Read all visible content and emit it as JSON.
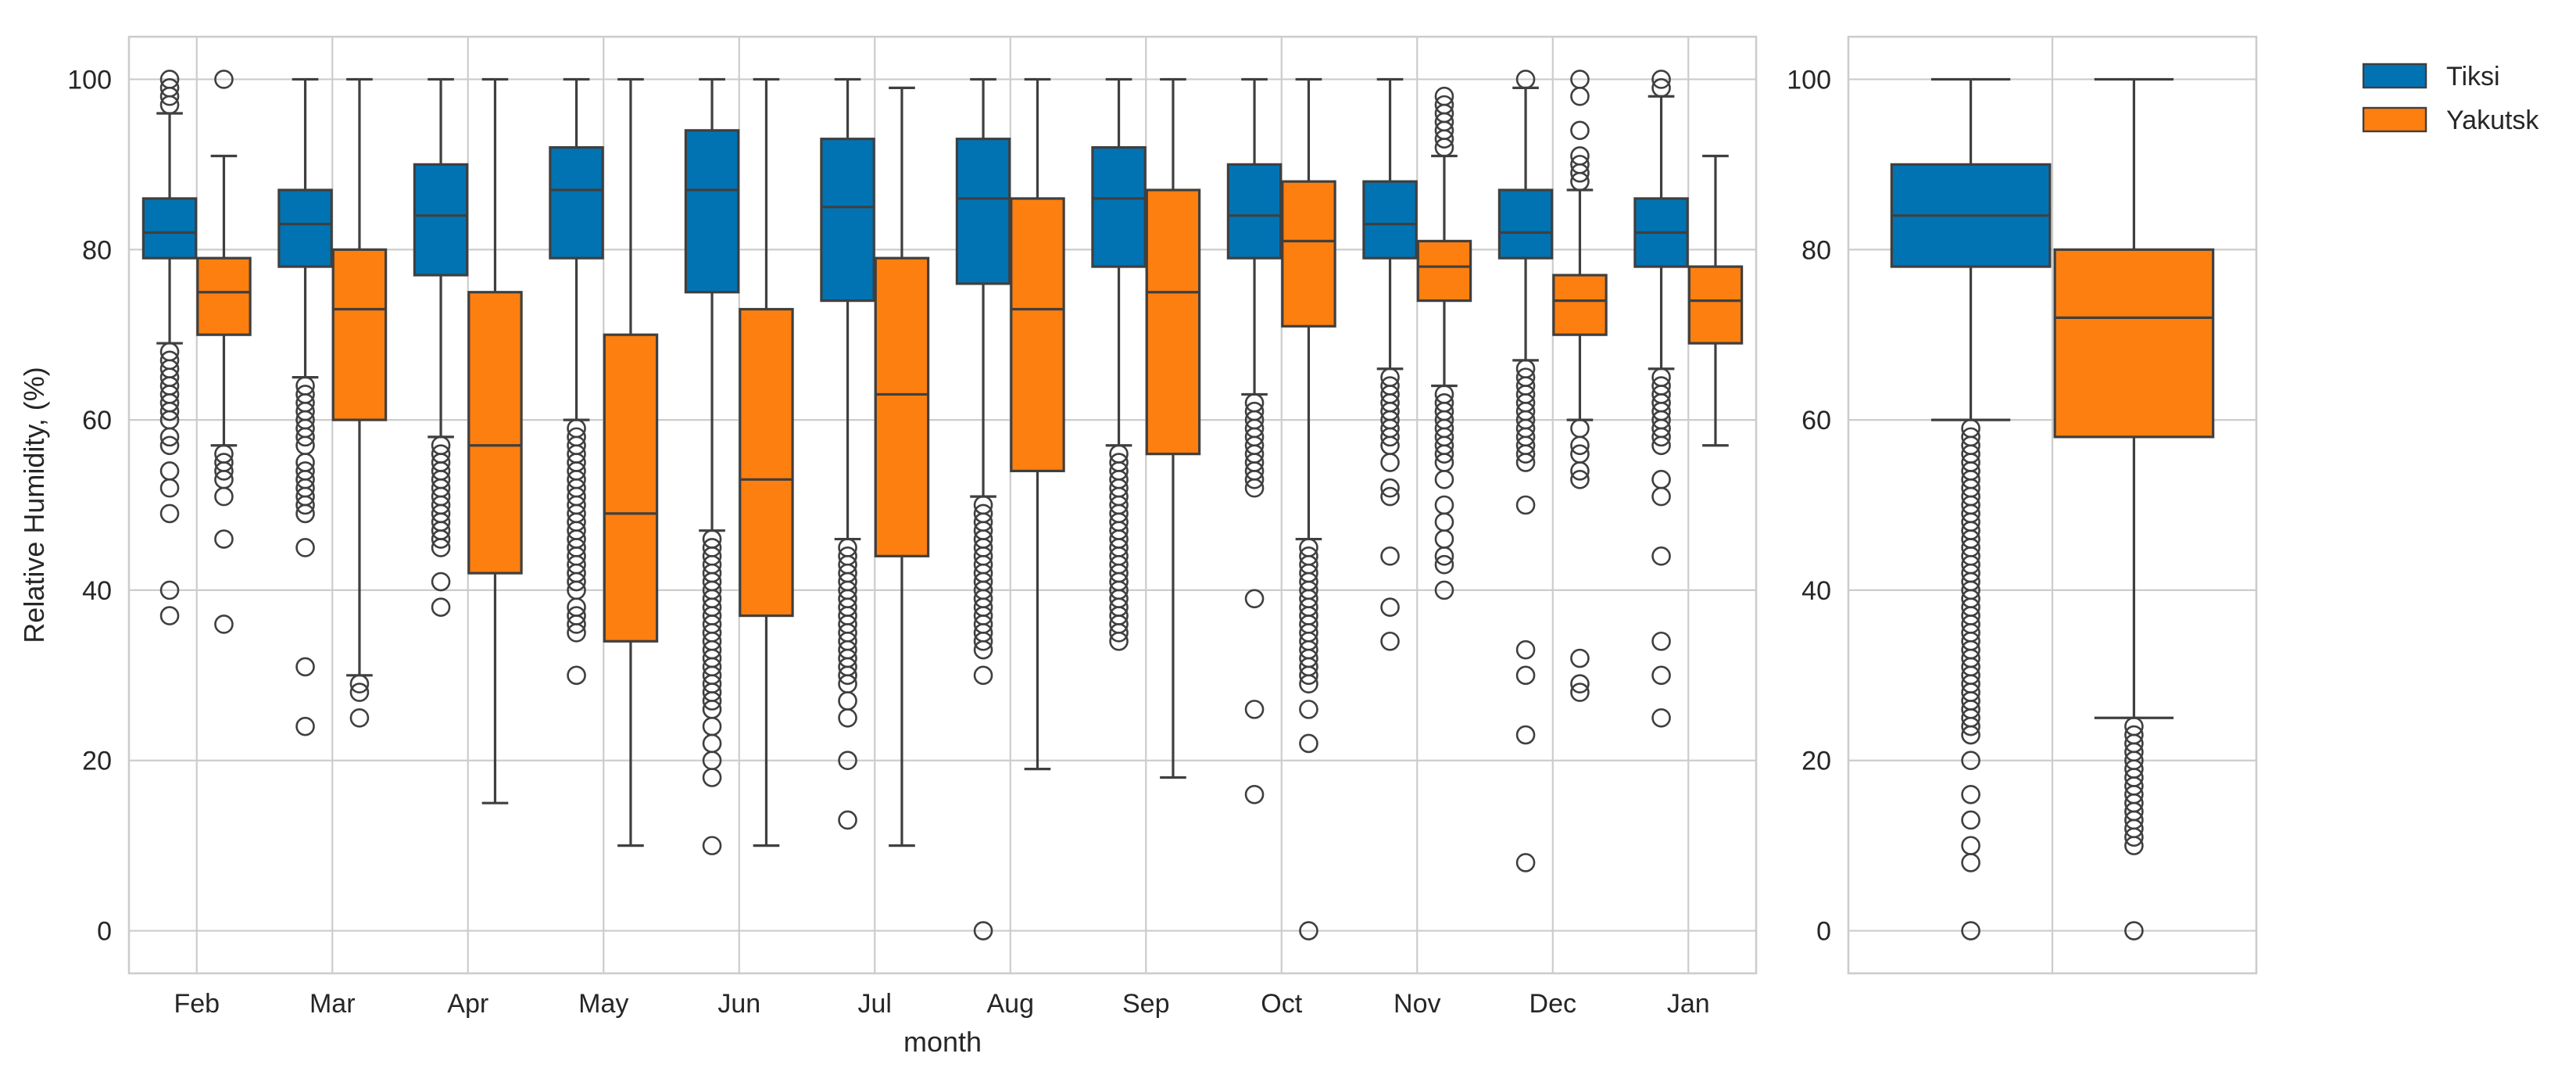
{
  "chart_data": {
    "type": "boxplot",
    "colors": {
      "Tiksi": "#0173b2",
      "Yakutsk": "#fd7f0f"
    },
    "legend": {
      "placement": "top-right",
      "entries": [
        "Tiksi",
        "Yakutsk"
      ]
    },
    "ylim": [
      -5,
      105
    ],
    "yticks": [
      0,
      20,
      40,
      60,
      80,
      100
    ],
    "ytick_labels": [
      "0",
      "20",
      "40",
      "60",
      "80",
      "100"
    ],
    "grid": true,
    "panels": [
      {
        "id": "monthly",
        "xlabel": "month",
        "ylabel": "Relative Humidity, (%)",
        "categories": [
          "Feb",
          "Mar",
          "Apr",
          "May",
          "Jun",
          "Jul",
          "Aug",
          "Sep",
          "Oct",
          "Nov",
          "Dec",
          "Jan"
        ],
        "series": [
          {
            "name": "Tiksi",
            "boxes": [
              {
                "whislo": 69,
                "q1": 79,
                "med": 82,
                "q3": 86,
                "whishi": 96,
                "fliers": [
                  37,
                  40,
                  49,
                  52,
                  54,
                  57,
                  58,
                  60,
                  61,
                  62,
                  63,
                  64,
                  65,
                  66,
                  67,
                  68,
                  97,
                  98,
                  99,
                  100
                ]
              },
              {
                "whislo": 65,
                "q1": 78,
                "med": 83,
                "q3": 87,
                "whishi": 100,
                "fliers": [
                  24,
                  31,
                  45,
                  49,
                  50,
                  51,
                  52,
                  53,
                  54,
                  55,
                  57,
                  58,
                  59,
                  60,
                  61,
                  62,
                  63,
                  64
                ]
              },
              {
                "whislo": 58,
                "q1": 77,
                "med": 84,
                "q3": 90,
                "whishi": 100,
                "fliers": [
                  38,
                  41,
                  45,
                  46,
                  47,
                  48,
                  49,
                  50,
                  51,
                  52,
                  53,
                  54,
                  55,
                  56,
                  57
                ]
              },
              {
                "whislo": 60,
                "q1": 79,
                "med": 87,
                "q3": 92,
                "whishi": 100,
                "fliers": [
                  30,
                  35,
                  36,
                  37,
                  38,
                  40,
                  41,
                  42,
                  43,
                  44,
                  45,
                  46,
                  47,
                  48,
                  49,
                  50,
                  51,
                  52,
                  53,
                  54,
                  55,
                  56,
                  57,
                  58,
                  59
                ]
              },
              {
                "whislo": 47,
                "q1": 75,
                "med": 87,
                "q3": 94,
                "whishi": 100,
                "fliers": [
                  10,
                  18,
                  20,
                  22,
                  24,
                  26,
                  27,
                  28,
                  29,
                  30,
                  31,
                  32,
                  33,
                  34,
                  35,
                  36,
                  37,
                  38,
                  39,
                  40,
                  41,
                  42,
                  43,
                  44,
                  45,
                  46
                ]
              },
              {
                "whislo": 46,
                "q1": 74,
                "med": 85,
                "q3": 93,
                "whishi": 100,
                "fliers": [
                  13,
                  20,
                  25,
                  27,
                  29,
                  30,
                  31,
                  32,
                  33,
                  34,
                  35,
                  36,
                  37,
                  38,
                  39,
                  40,
                  41,
                  42,
                  43,
                  44,
                  45
                ]
              },
              {
                "whislo": 51,
                "q1": 76,
                "med": 86,
                "q3": 93,
                "whishi": 100,
                "fliers": [
                  0,
                  30,
                  33,
                  34,
                  35,
                  36,
                  37,
                  38,
                  39,
                  40,
                  41,
                  42,
                  43,
                  44,
                  45,
                  46,
                  47,
                  48,
                  49,
                  50
                ]
              },
              {
                "whislo": 57,
                "q1": 78,
                "med": 86,
                "q3": 92,
                "whishi": 100,
                "fliers": [
                  34,
                  35,
                  36,
                  37,
                  38,
                  39,
                  40,
                  41,
                  42,
                  43,
                  44,
                  45,
                  46,
                  47,
                  48,
                  49,
                  50,
                  51,
                  52,
                  53,
                  54,
                  55,
                  56
                ]
              },
              {
                "whislo": 63,
                "q1": 79,
                "med": 84,
                "q3": 90,
                "whishi": 100,
                "fliers": [
                  16,
                  26,
                  39,
                  52,
                  53,
                  54,
                  55,
                  56,
                  57,
                  58,
                  59,
                  60,
                  61,
                  62
                ]
              },
              {
                "whislo": 66,
                "q1": 79,
                "med": 83,
                "q3": 88,
                "whishi": 100,
                "fliers": [
                  34,
                  38,
                  44,
                  51,
                  52,
                  55,
                  57,
                  58,
                  59,
                  60,
                  61,
                  62,
                  63,
                  64,
                  65
                ]
              },
              {
                "whislo": 67,
                "q1": 79,
                "med": 82,
                "q3": 87,
                "whishi": 99,
                "fliers": [
                  8,
                  23,
                  30,
                  33,
                  50,
                  55,
                  56,
                  57,
                  58,
                  59,
                  60,
                  61,
                  62,
                  63,
                  64,
                  65,
                  66,
                  100
                ]
              },
              {
                "whislo": 66,
                "q1": 78,
                "med": 82,
                "q3": 86,
                "whishi": 98,
                "fliers": [
                  25,
                  30,
                  34,
                  44,
                  51,
                  53,
                  57,
                  58,
                  59,
                  60,
                  61,
                  62,
                  63,
                  64,
                  65,
                  99,
                  100
                ]
              }
            ]
          },
          {
            "name": "Yakutsk",
            "boxes": [
              {
                "whislo": 57,
                "q1": 70,
                "med": 75,
                "q3": 79,
                "whishi": 91,
                "fliers": [
                  36,
                  46,
                  51,
                  53,
                  54,
                  55,
                  56,
                  100
                ]
              },
              {
                "whislo": 30,
                "q1": 60,
                "med": 73,
                "q3": 80,
                "whishi": 100,
                "fliers": [
                  25,
                  28,
                  29
                ]
              },
              {
                "whislo": 15,
                "q1": 42,
                "med": 57,
                "q3": 75,
                "whishi": 100,
                "fliers": []
              },
              {
                "whislo": 10,
                "q1": 34,
                "med": 49,
                "q3": 70,
                "whishi": 100,
                "fliers": []
              },
              {
                "whislo": 10,
                "q1": 37,
                "med": 53,
                "q3": 73,
                "whishi": 100,
                "fliers": []
              },
              {
                "whislo": 10,
                "q1": 44,
                "med": 63,
                "q3": 79,
                "whishi": 99,
                "fliers": []
              },
              {
                "whislo": 19,
                "q1": 54,
                "med": 73,
                "q3": 86,
                "whishi": 100,
                "fliers": []
              },
              {
                "whislo": 18,
                "q1": 56,
                "med": 75,
                "q3": 87,
                "whishi": 100,
                "fliers": []
              },
              {
                "whislo": 46,
                "q1": 71,
                "med": 81,
                "q3": 88,
                "whishi": 100,
                "fliers": [
                  0,
                  22,
                  26,
                  29,
                  30,
                  31,
                  32,
                  33,
                  34,
                  35,
                  36,
                  37,
                  38,
                  39,
                  40,
                  41,
                  42,
                  43,
                  44,
                  45
                ]
              },
              {
                "whislo": 64,
                "q1": 74,
                "med": 78,
                "q3": 81,
                "whishi": 91,
                "fliers": [
                  40,
                  43,
                  44,
                  46,
                  48,
                  50,
                  53,
                  55,
                  56,
                  57,
                  58,
                  59,
                  60,
                  61,
                  62,
                  63,
                  92,
                  93,
                  94,
                  95,
                  96,
                  97,
                  98
                ]
              },
              {
                "whislo": 60,
                "q1": 70,
                "med": 74,
                "q3": 77,
                "whishi": 87,
                "fliers": [
                  28,
                  29,
                  32,
                  53,
                  54,
                  56,
                  57,
                  59,
                  88,
                  89,
                  90,
                  91,
                  94,
                  98,
                  100
                ]
              },
              {
                "whislo": 57,
                "q1": 69,
                "med": 74,
                "q3": 78,
                "whishi": 91,
                "fliers": []
              }
            ]
          }
        ]
      },
      {
        "id": "overall",
        "xlabel": "",
        "ylabel": "",
        "categories": [
          ""
        ],
        "series": [
          {
            "name": "Tiksi",
            "boxes": [
              {
                "whislo": 60,
                "q1": 78,
                "med": 84,
                "q3": 90,
                "whishi": 100,
                "fliers": [
                  0,
                  8,
                  10,
                  13,
                  16,
                  20,
                  23,
                  24,
                  25,
                  26,
                  27,
                  28,
                  29,
                  30,
                  31,
                  32,
                  33,
                  34,
                  35,
                  36,
                  37,
                  38,
                  39,
                  40,
                  41,
                  42,
                  43,
                  44,
                  45,
                  46,
                  47,
                  48,
                  49,
                  50,
                  51,
                  52,
                  53,
                  54,
                  55,
                  56,
                  57,
                  58,
                  59
                ]
              }
            ]
          },
          {
            "name": "Yakutsk",
            "boxes": [
              {
                "whislo": 25,
                "q1": 58,
                "med": 72,
                "q3": 80,
                "whishi": 100,
                "fliers": [
                  0,
                  10,
                  11,
                  12,
                  13,
                  14,
                  15,
                  16,
                  17,
                  18,
                  19,
                  20,
                  21,
                  22,
                  23,
                  24
                ]
              }
            ]
          }
        ]
      }
    ]
  }
}
